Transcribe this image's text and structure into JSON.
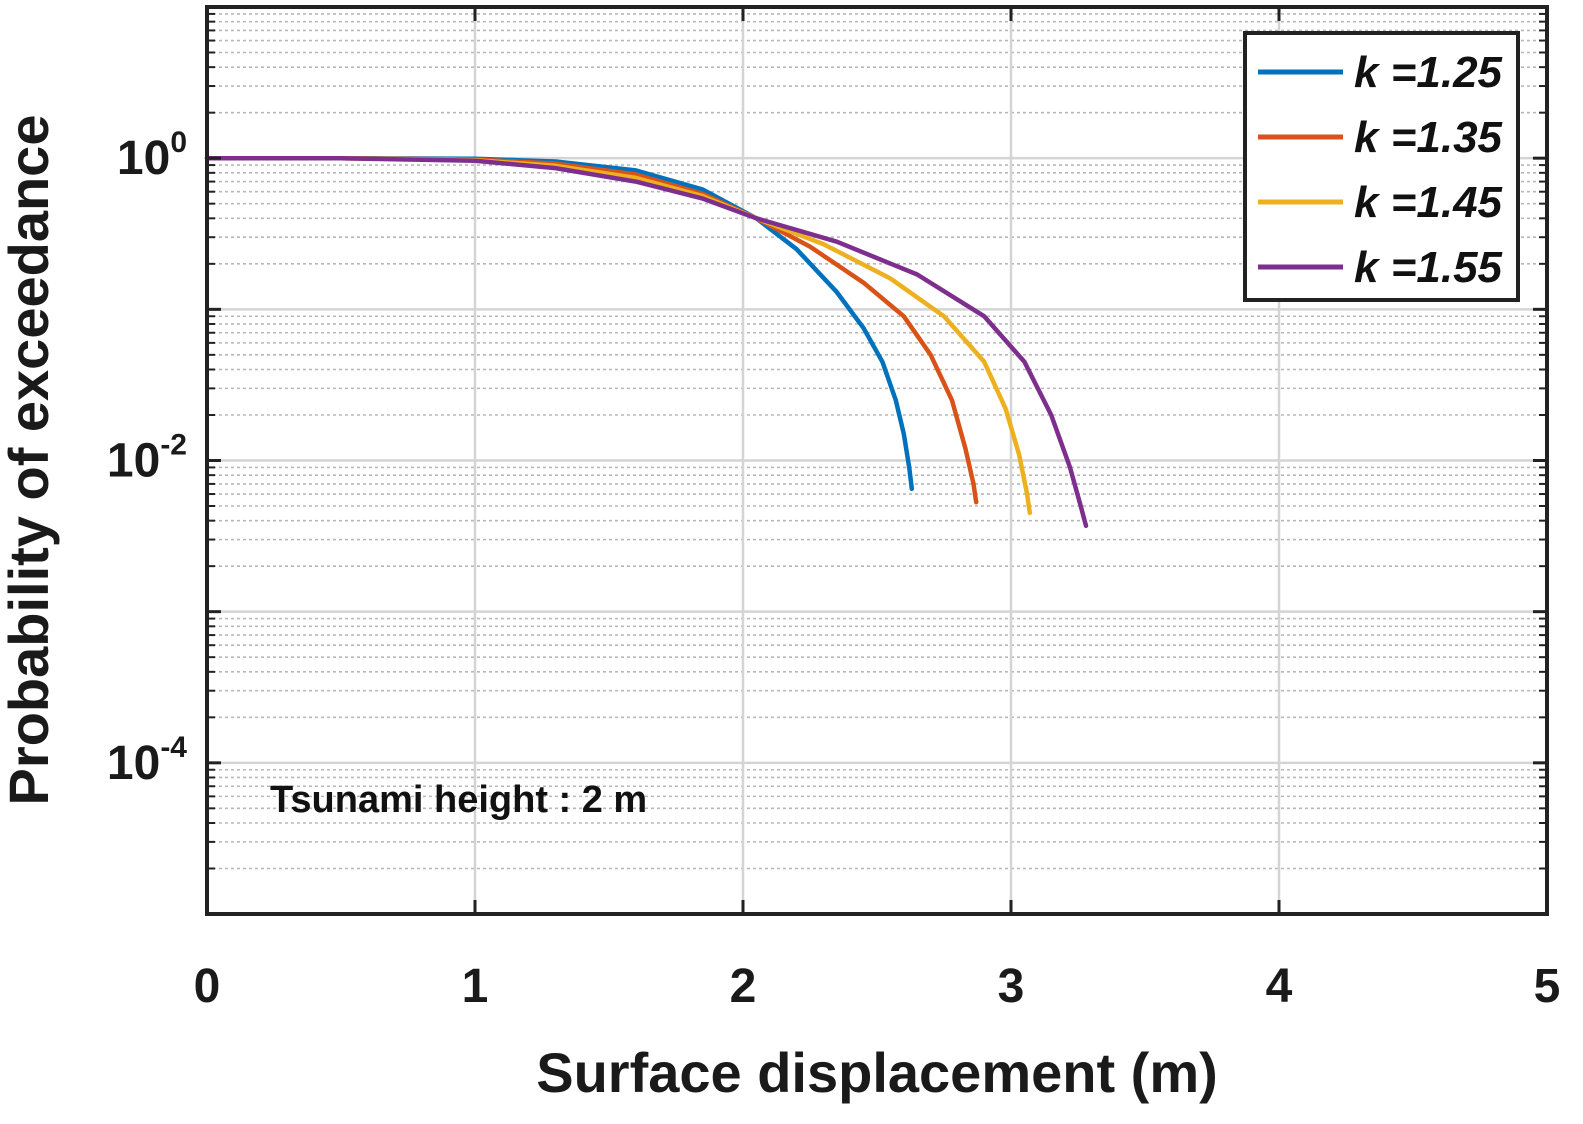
{
  "chart_data": {
    "type": "line",
    "title": "",
    "xlabel": "Surface displacement (m)",
    "ylabel": "Probability of exceedance",
    "xlim": [
      0,
      5
    ],
    "ylim_log10": [
      -5,
      1
    ],
    "yscale": "log",
    "grid": true,
    "minor_grid": true,
    "legend_position": "top-right",
    "x_ticks": [
      "0",
      "1",
      "2",
      "3",
      "4",
      "5"
    ],
    "y_ticks": [
      {
        "base": "10",
        "exp": "0"
      },
      {
        "base": "10",
        "exp": "-2"
      },
      {
        "base": "10",
        "exp": "-4"
      }
    ],
    "annotation": "Tsunami height : 2 m",
    "series": [
      {
        "name": "k =1.25",
        "color": "#0072BD",
        "x": [
          0,
          0.5,
          1.0,
          1.3,
          1.6,
          1.85,
          2.05,
          2.2,
          2.35,
          2.45,
          2.52,
          2.57,
          2.6,
          2.62,
          2.63
        ],
        "y": [
          1.0,
          1.0,
          0.99,
          0.95,
          0.83,
          0.62,
          0.4,
          0.25,
          0.13,
          0.075,
          0.045,
          0.025,
          0.015,
          0.009,
          0.0065
        ]
      },
      {
        "name": "k =1.35",
        "color": "#D95319",
        "x": [
          0,
          0.5,
          1.0,
          1.3,
          1.6,
          1.85,
          2.05,
          2.25,
          2.45,
          2.6,
          2.7,
          2.78,
          2.83,
          2.86,
          2.87
        ],
        "y": [
          1.0,
          1.0,
          0.98,
          0.92,
          0.78,
          0.58,
          0.4,
          0.26,
          0.15,
          0.09,
          0.05,
          0.025,
          0.012,
          0.007,
          0.0053
        ]
      },
      {
        "name": "k =1.45",
        "color": "#EDB120",
        "x": [
          0,
          0.5,
          1.0,
          1.3,
          1.6,
          1.85,
          2.05,
          2.3,
          2.55,
          2.75,
          2.9,
          2.98,
          3.03,
          3.06,
          3.07
        ],
        "y": [
          1.0,
          1.0,
          0.97,
          0.89,
          0.74,
          0.56,
          0.4,
          0.27,
          0.16,
          0.09,
          0.045,
          0.022,
          0.011,
          0.006,
          0.0045
        ]
      },
      {
        "name": "k =1.55",
        "color": "#7E2F8E",
        "x": [
          0,
          0.5,
          1.0,
          1.3,
          1.6,
          1.85,
          2.05,
          2.35,
          2.65,
          2.9,
          3.05,
          3.15,
          3.22,
          3.26,
          3.28
        ],
        "y": [
          1.0,
          1.0,
          0.96,
          0.86,
          0.7,
          0.54,
          0.4,
          0.28,
          0.17,
          0.09,
          0.045,
          0.02,
          0.009,
          0.005,
          0.0037
        ]
      }
    ]
  }
}
